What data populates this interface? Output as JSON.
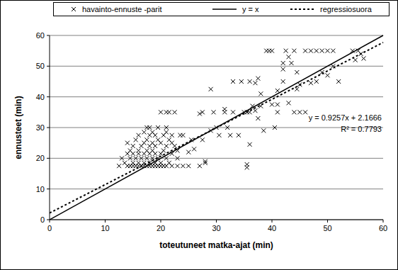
{
  "chart_data": {
    "type": "scatter",
    "xlabel": "toteutuneet matka-ajat (min)",
    "ylabel": "ennusteet (min)",
    "xlim": [
      0,
      60
    ],
    "ylim": [
      0,
      60
    ],
    "xticks": [
      0,
      10,
      20,
      30,
      40,
      50,
      60
    ],
    "yticks": [
      0,
      10,
      20,
      30,
      40,
      50,
      60
    ],
    "grid": "y",
    "legend": "top",
    "annotations": [
      "y = 0.9257x + 2.1666",
      "R² = 0.7793"
    ],
    "series": [
      {
        "name": "havainto-ennuste -parit",
        "type": "scatter",
        "marker": "x",
        "color": "#000000",
        "x": [
          12.5,
          14,
          14.5,
          15,
          15.5,
          16,
          16.5,
          17,
          17.5,
          18,
          18.5,
          19,
          19.5,
          20,
          20.5,
          21,
          22,
          23,
          24,
          25,
          27,
          13.5,
          15,
          16,
          17,
          18,
          19,
          20,
          21.5,
          13,
          14.5,
          15.5,
          16.5,
          17.5,
          18.5,
          19.5,
          21,
          23,
          14,
          15,
          16,
          17,
          18,
          19,
          20,
          22,
          14.5,
          16,
          17.5,
          18.5,
          20.5,
          23,
          15,
          16.5,
          18,
          19,
          21,
          22.5,
          14,
          17,
          18.5,
          20,
          22,
          15.5,
          17.5,
          19.5,
          21.5,
          16,
          18,
          19,
          20.5,
          22,
          23.5,
          17,
          18.5,
          21,
          17.5,
          18,
          19.5,
          21,
          20,
          21,
          21.5,
          22.5,
          24,
          25,
          25.5,
          26,
          27,
          27.5,
          28,
          28,
          27.5,
          29,
          29.5,
          29,
          30,
          30.5,
          31.5,
          31.5,
          32,
          32.5,
          33,
          33,
          34,
          34.5,
          35,
          35.5,
          35.5,
          35.5,
          36,
          36,
          36.5,
          36,
          37,
          37,
          37.5,
          37.5,
          38,
          38,
          38.5,
          39,
          39.5,
          40,
          40,
          40.5,
          41,
          41,
          42,
          42,
          42.5,
          43,
          43,
          44,
          44.5,
          44.5,
          45,
          45,
          46,
          46,
          47,
          47,
          48,
          48,
          49,
          49,
          50,
          50,
          51,
          51,
          52,
          54.5,
          55,
          55.5,
          56,
          56.5,
          42,
          43.5,
          41,
          44
        ],
        "values": [
          17.5,
          17.5,
          17.5,
          17.5,
          17.5,
          17.5,
          17.5,
          17.5,
          17.5,
          17.5,
          17.5,
          17.5,
          17.5,
          17.5,
          17.5,
          17.5,
          17.5,
          17.5,
          17.5,
          17.5,
          17.5,
          18.5,
          18.5,
          18.5,
          18.5,
          18.5,
          18.5,
          18.5,
          18.5,
          20,
          20,
          20,
          20,
          20,
          20,
          20,
          20,
          20,
          21.5,
          21.5,
          21.5,
          21.5,
          21.5,
          21.5,
          21.5,
          21.5,
          22.5,
          22.5,
          22.5,
          22.5,
          22.5,
          22.5,
          24,
          24,
          24,
          24,
          24,
          24,
          25,
          25,
          25,
          25,
          25,
          26,
          26,
          26,
          26,
          27.5,
          27.5,
          27.5,
          27.5,
          27.5,
          27.5,
          28.5,
          28.5,
          28.5,
          30,
          30,
          30,
          30,
          35,
          35,
          35,
          35,
          27.5,
          22,
          26,
          23,
          34.5,
          35,
          19,
          18.5,
          26,
          29,
          35,
          42.5,
          30,
          27.5,
          35,
          36,
          30,
          27.5,
          45,
          35,
          27.5,
          45,
          35,
          35,
          18,
          17,
          24.5,
          35,
          37,
          45,
          35.5,
          44.5,
          46,
          33,
          41,
          37,
          29,
          55,
          55,
          55,
          37.5,
          30,
          35,
          42,
          51,
          49,
          55,
          38,
          53,
          55,
          48,
          42.5,
          35,
          44,
          55,
          35,
          55,
          44.5,
          45,
          55,
          48,
          55,
          55,
          47,
          55,
          50,
          45,
          55,
          52,
          55,
          54,
          52.5,
          45,
          51,
          37.5,
          35
        ]
      },
      {
        "name": "y = x",
        "type": "line",
        "line_style": "solid",
        "color": "#000000",
        "x": [
          0,
          60
        ],
        "values": [
          0,
          60
        ]
      },
      {
        "name": "regressiosuora",
        "type": "line",
        "line_style": "dotted",
        "color": "#000000",
        "x": [
          0,
          60
        ],
        "values": [
          2.17,
          57.71
        ]
      }
    ]
  }
}
